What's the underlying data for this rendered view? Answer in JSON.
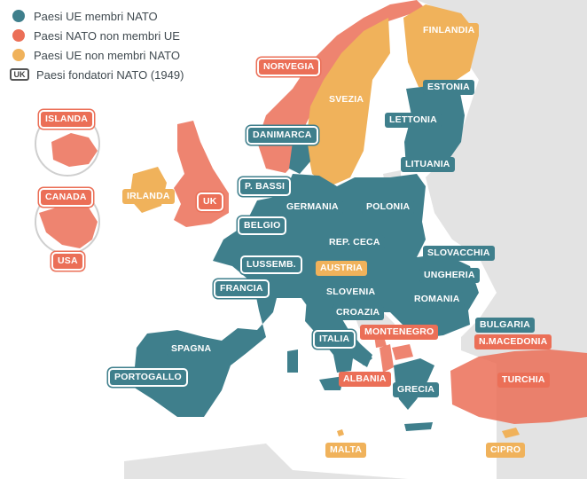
{
  "legend": {
    "members": "Paesi UE membri NATO",
    "nato_only": "Paesi NATO non membri UE",
    "eu_only": "Paesi UE non membri NATO",
    "founders_badge": "UK",
    "founders": "Paesi fondatori NATO (1949)"
  },
  "colors": {
    "eu_nato": "#3f7f8c",
    "nato_non_eu": "#eb6f57",
    "eu_non_nato": "#f0b25b",
    "other_land": "#e3e3e3",
    "sea": "#ffffff"
  },
  "labels": {
    "norvegia": "NORVEGIA",
    "finlandia": "FINLANDIA",
    "svezia": "SVEZIA",
    "estonia": "ESTONIA",
    "lettonia": "LETTONIA",
    "lituania": "LITUANIA",
    "islanda": "ISLANDA",
    "danimarca": "DANIMARCA",
    "irlanda": "IRLANDA",
    "uk": "UK",
    "canada": "CANADA",
    "usa": "USA",
    "p_bassi": "P. BASSI",
    "germania": "GERMANIA",
    "polonia": "POLONIA",
    "belgio": "BELGIO",
    "rep_ceca": "REP. CECA",
    "slovacchia": "SLOVACCHIA",
    "lussemb": "LUSSEMB.",
    "austria": "AUSTRIA",
    "ungheria": "UNGHERIA",
    "francia": "FRANCIA",
    "slovenia": "SLOVENIA",
    "romania": "ROMANIA",
    "croazia": "CROAZIA",
    "bulgaria": "BULGARIA",
    "montenegro": "MONTENEGRO",
    "n_macedonia": "N.MACEDONIA",
    "italia": "ITALIA",
    "spagna": "SPAGNA",
    "portogallo": "PORTOGALLO",
    "albania": "ALBANIA",
    "grecia": "GRECIA",
    "turchia": "TURCHIA",
    "malta": "MALTA",
    "cipro": "CIPRO"
  }
}
